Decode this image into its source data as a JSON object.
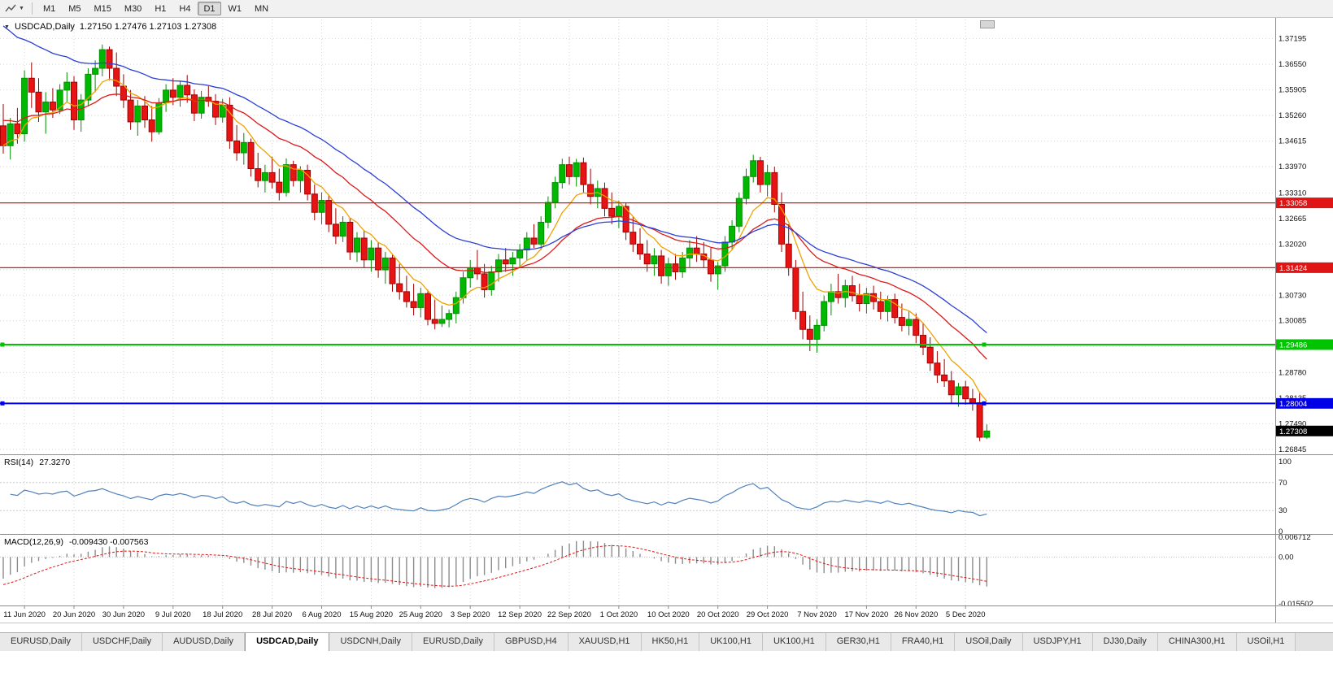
{
  "toolbar": {
    "timeframes": [
      "M1",
      "M5",
      "M15",
      "M30",
      "H1",
      "H4",
      "D1",
      "W1",
      "MN"
    ],
    "active_timeframe": "D1"
  },
  "chart_data": {
    "type": "candlestick",
    "symbol": "USDCAD",
    "timeframe": "Daily",
    "title": "USDCAD,Daily",
    "ohlc_display": "1.27150 1.27476 1.27103 1.27308",
    "current_price": "1.27308",
    "y_ticks": [
      "1.37195",
      "1.36550",
      "1.35905",
      "1.35260",
      "1.34615",
      "1.33970",
      "1.33310",
      "1.32665",
      "1.32020",
      "1.31375",
      "1.30730",
      "1.30085",
      "1.29440",
      "1.28780",
      "1.28135",
      "1.27490",
      "1.26845"
    ],
    "x_labels": [
      "11 Jun 2020",
      "20 Jun 2020",
      "30 Jun 2020",
      "9 Jul 2020",
      "18 Jul 2020",
      "28 Jul 2020",
      "6 Aug 2020",
      "15 Aug 2020",
      "25 Aug 2020",
      "3 Sep 2020",
      "12 Sep 2020",
      "22 Sep 2020",
      "1 Oct 2020",
      "10 Oct 2020",
      "20 Oct 2020",
      "29 Oct 2020",
      "7 Nov 2020",
      "17 Nov 2020",
      "26 Nov 2020",
      "5 Dec 2020"
    ],
    "first_label_bar": 3,
    "label_step": 7,
    "candles": [
      [
        1.35,
        1.3555,
        1.343,
        1.345
      ],
      [
        1.345,
        1.352,
        1.3415,
        1.3505
      ],
      [
        1.3505,
        1.3545,
        1.3455,
        1.348
      ],
      [
        1.348,
        1.364,
        1.346,
        1.362
      ],
      [
        1.362,
        1.366,
        1.3545,
        1.3585
      ],
      [
        1.3585,
        1.362,
        1.351,
        1.3535
      ],
      [
        1.3535,
        1.3585,
        1.348,
        1.356
      ],
      [
        1.356,
        1.3595,
        1.352,
        1.354
      ],
      [
        1.354,
        1.3605,
        1.353,
        1.359
      ],
      [
        1.359,
        1.3635,
        1.356,
        1.361
      ],
      [
        1.361,
        1.3625,
        1.349,
        1.3515
      ],
      [
        1.3515,
        1.358,
        1.3485,
        1.3565
      ],
      [
        1.3565,
        1.3645,
        1.355,
        1.363
      ],
      [
        1.363,
        1.3665,
        1.3585,
        1.3645
      ],
      [
        1.3645,
        1.3705,
        1.3625,
        1.3692
      ],
      [
        1.3692,
        1.37,
        1.3615,
        1.3645
      ],
      [
        1.3645,
        1.3685,
        1.3575,
        1.36
      ],
      [
        1.36,
        1.363,
        1.3545,
        1.3565
      ],
      [
        1.3565,
        1.359,
        1.349,
        1.351
      ],
      [
        1.351,
        1.3565,
        1.3475,
        1.355
      ],
      [
        1.355,
        1.3575,
        1.3495,
        1.3515
      ],
      [
        1.3515,
        1.355,
        1.346,
        1.3485
      ],
      [
        1.3485,
        1.357,
        1.3478,
        1.3558
      ],
      [
        1.3558,
        1.3605,
        1.3535,
        1.359
      ],
      [
        1.359,
        1.362,
        1.3552,
        1.3572
      ],
      [
        1.3572,
        1.3612,
        1.3548,
        1.3602
      ],
      [
        1.3602,
        1.3628,
        1.3558,
        1.3578
      ],
      [
        1.3578,
        1.3592,
        1.3512,
        1.3532
      ],
      [
        1.3532,
        1.3588,
        1.3518,
        1.3572
      ],
      [
        1.3572,
        1.36,
        1.3548,
        1.3562
      ],
      [
        1.3562,
        1.358,
        1.3502,
        1.3522
      ],
      [
        1.3522,
        1.3568,
        1.3508,
        1.3552
      ],
      [
        1.3552,
        1.3572,
        1.3442,
        1.3462
      ],
      [
        1.3462,
        1.3502,
        1.3412,
        1.3432
      ],
      [
        1.3432,
        1.3482,
        1.3402,
        1.3458
      ],
      [
        1.3458,
        1.3468,
        1.3372,
        1.3392
      ],
      [
        1.3392,
        1.3432,
        1.3345,
        1.3362
      ],
      [
        1.3362,
        1.3402,
        1.3332,
        1.3382
      ],
      [
        1.3382,
        1.3422,
        1.3342,
        1.3358
      ],
      [
        1.3358,
        1.3392,
        1.3312,
        1.3332
      ],
      [
        1.3332,
        1.3418,
        1.3322,
        1.3402
      ],
      [
        1.3402,
        1.3412,
        1.3347,
        1.3362
      ],
      [
        1.3362,
        1.3398,
        1.3332,
        1.3388
      ],
      [
        1.3388,
        1.3402,
        1.3312,
        1.3328
      ],
      [
        1.3328,
        1.3352,
        1.3262,
        1.3282
      ],
      [
        1.3282,
        1.3332,
        1.3252,
        1.3312
      ],
      [
        1.3312,
        1.3327,
        1.3232,
        1.3252
      ],
      [
        1.3252,
        1.3292,
        1.3202,
        1.3222
      ],
      [
        1.3222,
        1.3272,
        1.3207,
        1.3257
      ],
      [
        1.3257,
        1.3267,
        1.3162,
        1.3182
      ],
      [
        1.3182,
        1.3232,
        1.3157,
        1.3217
      ],
      [
        1.3217,
        1.3237,
        1.3142,
        1.3162
      ],
      [
        1.3162,
        1.3212,
        1.3132,
        1.3192
      ],
      [
        1.3192,
        1.3207,
        1.3117,
        1.3137
      ],
      [
        1.3137,
        1.3182,
        1.3102,
        1.3167
      ],
      [
        1.3167,
        1.3177,
        1.3082,
        1.3102
      ],
      [
        1.3102,
        1.3152,
        1.3062,
        1.3082
      ],
      [
        1.3082,
        1.3122,
        1.3042,
        1.3057
      ],
      [
        1.3057,
        1.3102,
        1.3022,
        1.3042
      ],
      [
        1.3042,
        1.3092,
        1.3017,
        1.3077
      ],
      [
        1.3077,
        1.3087,
        1.2997,
        1.3012
      ],
      [
        1.3012,
        1.3062,
        1.2987,
        1.3002
      ],
      [
        1.3002,
        1.3047,
        1.2993,
        1.3012
      ],
      [
        1.3012,
        1.3037,
        1.2992,
        1.3027
      ],
      [
        1.3027,
        1.3082,
        1.3002,
        1.3067
      ],
      [
        1.3067,
        1.3132,
        1.3052,
        1.3117
      ],
      [
        1.3117,
        1.3162,
        1.3092,
        1.3142
      ],
      [
        1.3142,
        1.3187,
        1.3112,
        1.3127
      ],
      [
        1.3127,
        1.3152,
        1.3067,
        1.3087
      ],
      [
        1.3087,
        1.3147,
        1.3072,
        1.3132
      ],
      [
        1.3132,
        1.3177,
        1.3107,
        1.3162
      ],
      [
        1.3162,
        1.3192,
        1.3132,
        1.3152
      ],
      [
        1.3152,
        1.3182,
        1.3122,
        1.3167
      ],
      [
        1.3167,
        1.3202,
        1.3142,
        1.3187
      ],
      [
        1.3187,
        1.3232,
        1.3162,
        1.3217
      ],
      [
        1.3217,
        1.3252,
        1.3192,
        1.3202
      ],
      [
        1.3202,
        1.3272,
        1.3187,
        1.3257
      ],
      [
        1.3257,
        1.3322,
        1.3242,
        1.3307
      ],
      [
        1.3307,
        1.3372,
        1.3292,
        1.3357
      ],
      [
        1.3357,
        1.3417,
        1.3342,
        1.3402
      ],
      [
        1.3402,
        1.3422,
        1.3352,
        1.3372
      ],
      [
        1.3372,
        1.3417,
        1.3347,
        1.3407
      ],
      [
        1.3407,
        1.342,
        1.3332,
        1.3352
      ],
      [
        1.3352,
        1.3392,
        1.3302,
        1.3322
      ],
      [
        1.3322,
        1.3362,
        1.3292,
        1.3342
      ],
      [
        1.3342,
        1.3357,
        1.3272,
        1.3292
      ],
      [
        1.3292,
        1.3332,
        1.3252,
        1.3272
      ],
      [
        1.3272,
        1.3312,
        1.3242,
        1.3297
      ],
      [
        1.3297,
        1.3307,
        1.3212,
        1.3232
      ],
      [
        1.3232,
        1.3272,
        1.3182,
        1.3202
      ],
      [
        1.3202,
        1.3242,
        1.3162,
        1.3177
      ],
      [
        1.3177,
        1.3212,
        1.3132,
        1.3152
      ],
      [
        1.3152,
        1.3192,
        1.3122,
        1.3172
      ],
      [
        1.3172,
        1.3187,
        1.3102,
        1.3122
      ],
      [
        1.3122,
        1.3167,
        1.3097,
        1.3152
      ],
      [
        1.3152,
        1.3177,
        1.3112,
        1.3132
      ],
      [
        1.3132,
        1.3182,
        1.3117,
        1.3167
      ],
      [
        1.3167,
        1.3212,
        1.3142,
        1.3192
      ],
      [
        1.3192,
        1.3222,
        1.3157,
        1.3177
      ],
      [
        1.3177,
        1.3207,
        1.3142,
        1.3162
      ],
      [
        1.3162,
        1.3192,
        1.3107,
        1.3127
      ],
      [
        1.3127,
        1.3157,
        1.3087,
        1.3147
      ],
      [
        1.3147,
        1.3222,
        1.3132,
        1.3207
      ],
      [
        1.3207,
        1.3262,
        1.3187,
        1.3247
      ],
      [
        1.3247,
        1.3332,
        1.3232,
        1.3317
      ],
      [
        1.3317,
        1.3392,
        1.3302,
        1.3372
      ],
      [
        1.3372,
        1.3427,
        1.3357,
        1.3412
      ],
      [
        1.3412,
        1.3422,
        1.3332,
        1.3352
      ],
      [
        1.3352,
        1.3402,
        1.3322,
        1.3382
      ],
      [
        1.3382,
        1.3397,
        1.3282,
        1.3302
      ],
      [
        1.3302,
        1.3332,
        1.3182,
        1.3202
      ],
      [
        1.3202,
        1.3252,
        1.3122,
        1.3142
      ],
      [
        1.3142,
        1.3162,
        1.3012,
        1.3032
      ],
      [
        1.3032,
        1.3082,
        1.2962,
        1.2987
      ],
      [
        1.2987,
        1.3022,
        1.2932,
        1.2962
      ],
      [
        1.2962,
        1.3012,
        1.2928,
        1.2997
      ],
      [
        1.2997,
        1.3072,
        1.2982,
        1.3057
      ],
      [
        1.3057,
        1.3102,
        1.3022,
        1.3082
      ],
      [
        1.3082,
        1.3127,
        1.3052,
        1.3067
      ],
      [
        1.3067,
        1.3112,
        1.3042,
        1.3097
      ],
      [
        1.3097,
        1.3122,
        1.3057,
        1.3072
      ],
      [
        1.3072,
        1.3102,
        1.3032,
        1.3052
      ],
      [
        1.3052,
        1.3092,
        1.3027,
        1.3077
      ],
      [
        1.3077,
        1.3097,
        1.3037,
        1.3057
      ],
      [
        1.3057,
        1.3082,
        1.3012,
        1.3032
      ],
      [
        1.3032,
        1.3072,
        1.3007,
        1.3062
      ],
      [
        1.3062,
        1.3077,
        1.3002,
        1.3017
      ],
      [
        1.3017,
        1.3052,
        1.2982,
        1.2997
      ],
      [
        1.2997,
        1.3032,
        1.2972,
        1.3012
      ],
      [
        1.3012,
        1.3027,
        1.2952,
        1.2972
      ],
      [
        1.2972,
        1.3002,
        1.2922,
        1.2942
      ],
      [
        1.2942,
        1.2967,
        1.2882,
        1.2902
      ],
      [
        1.2902,
        1.2932,
        1.2852,
        1.2872
      ],
      [
        1.2872,
        1.2912,
        1.2842,
        1.2857
      ],
      [
        1.2857,
        1.2882,
        1.2802,
        1.2822
      ],
      [
        1.2822,
        1.2852,
        1.2792,
        1.2842
      ],
      [
        1.2842,
        1.2857,
        1.2797,
        1.2812
      ],
      [
        1.2812,
        1.2837,
        1.2782,
        1.2802
      ],
      [
        1.2802,
        1.283,
        1.2705,
        1.2715
      ],
      [
        1.2715,
        1.27476,
        1.27103,
        1.27308
      ]
    ],
    "hlines": [
      {
        "price": 1.33058,
        "label": "1.33058",
        "color": "#e01414",
        "width": 1.2,
        "handles": false
      },
      {
        "price": 1.31424,
        "label": "1.31424",
        "color": "#e01414",
        "width": 1.2,
        "handles": false
      },
      {
        "price": 1.29486,
        "label": "1.29486",
        "color": "#00c400",
        "width": 2,
        "handles": true
      },
      {
        "price": 1.28004,
        "label": "1.28004",
        "color": "#0000e6",
        "width": 2,
        "handles": true
      }
    ],
    "moving_averages": [
      {
        "name": "ma-fast",
        "period": 8,
        "color": "#eea200",
        "seed": 1.345
      },
      {
        "name": "ma-medium",
        "period": 21,
        "color": "#dd1a1a",
        "seed": 1.352
      },
      {
        "name": "ma-slow",
        "period": 34,
        "color": "#2b3fd6",
        "seed": 1.377
      }
    ],
    "rsi": {
      "label": "RSI(14)",
      "value_label": "27.3270",
      "period": 14,
      "levels": [
        100,
        70,
        30,
        0
      ],
      "color": "#4f81bd"
    },
    "macd": {
      "label": "MACD(12,26,9)",
      "values_label": "-0.009430 -0.007563",
      "fast": 12,
      "slow": 26,
      "signal_period": 9,
      "axis_max": "0.006712",
      "axis_zero": "0.00",
      "axis_min": "-0.015502",
      "scale_max": 0.006712,
      "scale_min": -0.015502
    },
    "colors": {
      "up": "#008f00",
      "up_fill": "#00b800",
      "down": "#a00000",
      "down_fill": "#e81414",
      "grid": "#d4d4d4",
      "macd_hist": "#8c8c8c",
      "macd_signal": "#e01414"
    }
  },
  "tabs": {
    "items": [
      "EURUSD,Daily",
      "USDCHF,Daily",
      "AUDUSD,Daily",
      "USDCAD,Daily",
      "USDCNH,Daily",
      "EURUSD,Daily",
      "GBPUSD,H4",
      "XAUUSD,H1",
      "HK50,H1",
      "UK100,H1",
      "UK100,H1",
      "GER30,H1",
      "FRA40,H1",
      "USOil,Daily",
      "USDJPY,H1",
      "DJ30,Daily",
      "CHINA300,H1",
      "USOil,H1"
    ],
    "active_index": 3
  }
}
